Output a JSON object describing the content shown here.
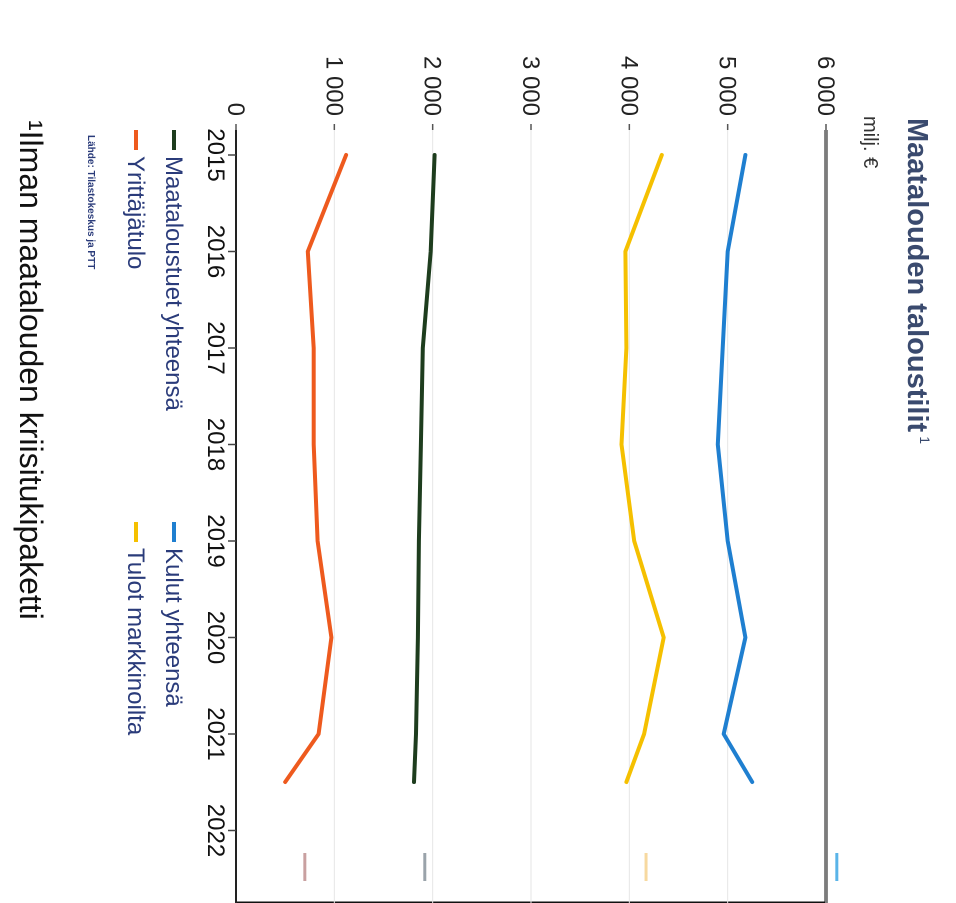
{
  "chart_data": {
    "type": "line",
    "title": "Maatalouden taloustilit",
    "title_footnote_mark": "1",
    "unit_label": "milj. €",
    "categories": [
      "2015",
      "2016",
      "2017",
      "2018",
      "2019",
      "2020",
      "2021",
      "2022"
    ],
    "ylim": [
      0,
      6000
    ],
    "y_ticks": [
      0,
      1000,
      2000,
      3000,
      4000,
      5000,
      6000
    ],
    "y_tick_labels": [
      "0",
      "1 000",
      "2 000",
      "3 000",
      "4 000",
      "5 000",
      "6 000"
    ],
    "series": [
      {
        "name": "Kulut yhteensä",
        "color": "#1f7fd0",
        "values": [
          5180,
          5000,
          4950,
          4900,
          5000,
          5180,
          4960,
          5250
        ]
      },
      {
        "name": "Tulot markkinoilta",
        "color": "#f5c000",
        "values": [
          4330,
          3960,
          3970,
          3920,
          4050,
          4350,
          4150,
          3970
        ]
      },
      {
        "name": "Maataloustuet yhteensä",
        "color": "#1e3d1e",
        "values": [
          2020,
          1980,
          1900,
          1880,
          1860,
          1850,
          1830,
          1810
        ]
      },
      {
        "name": "Yrittäjätulo",
        "color": "#ee5a1e",
        "values": [
          1120,
          730,
          790,
          790,
          830,
          970,
          840,
          500
        ]
      }
    ],
    "stub_colors": [
      "#5ab4e8",
      "#f7d9a0",
      "#9aa3aa",
      "#c9a0a0"
    ],
    "source": "Lähde: Tilastokeskus ja PTT",
    "footnote": "¹Ilman maatalouden kriisitukipaketti"
  }
}
